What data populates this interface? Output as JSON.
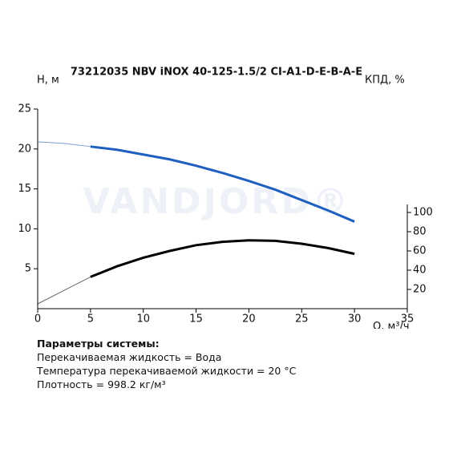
{
  "chart_data": {
    "type": "line",
    "title": "73212035 NBV iNOX 40-125-1.5/2 CI-A1-D-E-B-A-E",
    "watermark": "VANDJORD®",
    "ylabel": "H, м",
    "y2label": "КПД, %",
    "xlabel": "Q, м³/ч",
    "x": [
      0,
      2.5,
      5,
      7.5,
      10,
      12.5,
      15,
      17.5,
      20,
      22.5,
      25,
      27.5,
      30
    ],
    "xlim": [
      0,
      35
    ],
    "xticks": [
      0,
      5,
      10,
      15,
      20,
      25,
      30,
      35
    ],
    "ylim": [
      0,
      25
    ],
    "yticks": [
      5,
      10,
      15,
      20,
      25
    ],
    "y2lim": [
      0,
      207.5
    ],
    "y2ticks": [
      20,
      40,
      60,
      80,
      100
    ],
    "thin_until_x": 5,
    "series": [
      {
        "color": "#1f5fc0",
        "values": [
          20.9,
          20.7,
          20.3,
          19.9,
          19.3,
          18.7,
          17.9,
          17.0,
          16.0,
          14.9,
          13.6,
          12.3,
          10.9
        ]
      },
      {
        "color": "#000000",
        "axis": "y2",
        "values": [
          5,
          19,
          33,
          44,
          53,
          60,
          66,
          69.5,
          71,
          70.5,
          67.5,
          63,
          57
        ]
      }
    ]
  },
  "parameters": {
    "heading": "Параметры системы:",
    "lines": [
      "Перекачиваемая жидкость = Вода",
      "Температура перекачиваемой жидкости = 20 °C",
      "Плотность = 998.2 кг/м³"
    ]
  }
}
